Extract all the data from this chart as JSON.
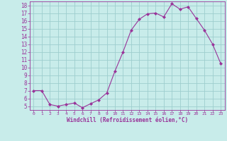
{
  "x": [
    0,
    1,
    2,
    3,
    4,
    5,
    6,
    7,
    8,
    9,
    10,
    11,
    12,
    13,
    14,
    15,
    16,
    17,
    18,
    19,
    20,
    21,
    22,
    23
  ],
  "y": [
    7.0,
    7.0,
    5.2,
    5.0,
    5.2,
    5.4,
    4.8,
    5.3,
    5.8,
    6.7,
    9.5,
    12.0,
    14.8,
    16.2,
    16.9,
    17.0,
    16.5,
    18.2,
    17.5,
    17.8,
    16.3,
    14.8,
    13.0,
    10.5
  ],
  "line_color": "#993399",
  "marker": "D",
  "marker_size": 2,
  "bg_color": "#c8ecea",
  "grid_color": "#9ecece",
  "xlabel": "Windchill (Refroidissement éolien,°C)",
  "xlabel_color": "#993399",
  "tick_color": "#993399",
  "ylim": [
    4.5,
    18.5
  ],
  "xlim": [
    -0.5,
    23.5
  ],
  "yticks": [
    5,
    6,
    7,
    8,
    9,
    10,
    11,
    12,
    13,
    14,
    15,
    16,
    17,
    18
  ],
  "xticks": [
    0,
    1,
    2,
    3,
    4,
    5,
    6,
    7,
    8,
    9,
    10,
    11,
    12,
    13,
    14,
    15,
    16,
    17,
    18,
    19,
    20,
    21,
    22,
    23
  ],
  "xlabel_fontsize": 5.5,
  "tick_fontsize_x": 4.5,
  "tick_fontsize_y": 5.5
}
